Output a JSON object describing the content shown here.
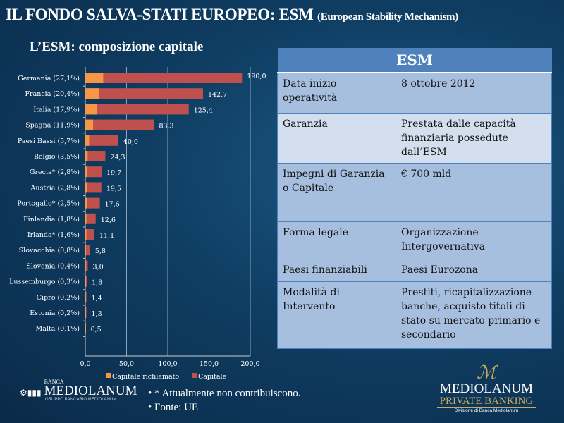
{
  "header": {
    "title": "IL FONDO SALVA-STATI EUROPEO: ESM",
    "title_sub": "(European Stability Mechanism)",
    "chart_title": "L’ESM: composizione capitale"
  },
  "chart_data": {
    "type": "bar",
    "orientation": "horizontal",
    "stacked": false,
    "categories": [
      "Germania (27,1%)",
      "Francia (20,4%)",
      "Italia (17,9%)",
      "Spagna (11,9%)",
      "Paesi Bassi (5,7%)",
      "Belgio (3,5%)",
      "Grecia* (2,8%)",
      "Austria (2,8%)",
      "Portogallo* (2,5%)",
      "Finlandia (1,8%)",
      "Irlanda* (1,6%)",
      "Slovacchia (0,8%)",
      "Slovenia (0,4%)",
      "Lussemburgo (0,3%)",
      "Cipro (0,2%)",
      "Estonia (0,2%)",
      "Malta (0,1%)"
    ],
    "series": [
      {
        "name": "Capitale richiamato",
        "color": "#f79646",
        "values": [
          21.7,
          16.3,
          14.3,
          9.5,
          4.6,
          2.8,
          2.3,
          2.2,
          2.0,
          1.4,
          1.3,
          0.7,
          0.3,
          0.2,
          0.2,
          0.2,
          0.1
        ]
      },
      {
        "name": "Capitale",
        "color": "#c0504d",
        "values": [
          190.0,
          142.7,
          125.4,
          83.3,
          40.0,
          24.3,
          19.7,
          19.5,
          17.6,
          12.6,
          11.1,
          5.8,
          3.0,
          1.8,
          1.4,
          1.3,
          0.5
        ],
        "labels": [
          "190,0",
          "142,7",
          "125,4",
          "83,3",
          "40,0",
          "24,3",
          "19,7",
          "19,5",
          "17,6",
          "12,6",
          "11,1",
          "5,8",
          "3,0",
          "1,8",
          "1,4",
          "1,3",
          "0,5"
        ]
      }
    ],
    "xticks": [
      "0,0",
      "50,0",
      "100,0",
      "150,0",
      "200,0"
    ],
    "xlim": [
      0,
      200
    ],
    "grid": true,
    "legend": "bottom"
  },
  "table": {
    "header": "ESM",
    "rows": [
      [
        "Data inizio operatività",
        "8 ottobre 2012"
      ],
      [
        "Garanzia",
        "Prestata dalle capacità finanziaria possedute dall’ESM"
      ],
      [
        "Impegni di Garanzia  o Capitale",
        "€ 700 mld"
      ],
      [
        "Forma legale",
        "Organizzazione Intergovernativa"
      ],
      [
        "Paesi finanziabili",
        "Paesi Eurozona"
      ],
      [
        "Modalità di Intervento",
        "Prestiti, ricapitalizzazione banche, acquisto titoli di stato su mercato primario e secondario"
      ]
    ]
  },
  "notes": [
    "* Attualmente non contribuiscono.",
    "Fonte: UE"
  ],
  "logos": {
    "left": {
      "top": "BANCA",
      "name": "MEDIOLANUM",
      "sub": "GRUPPO BANCARIO MEDIOLANUM"
    },
    "right": {
      "name": "MEDIOLANUM",
      "line2": "PRIVATE BANKING",
      "sub": "Divisione di Banca Mediolanum"
    }
  }
}
